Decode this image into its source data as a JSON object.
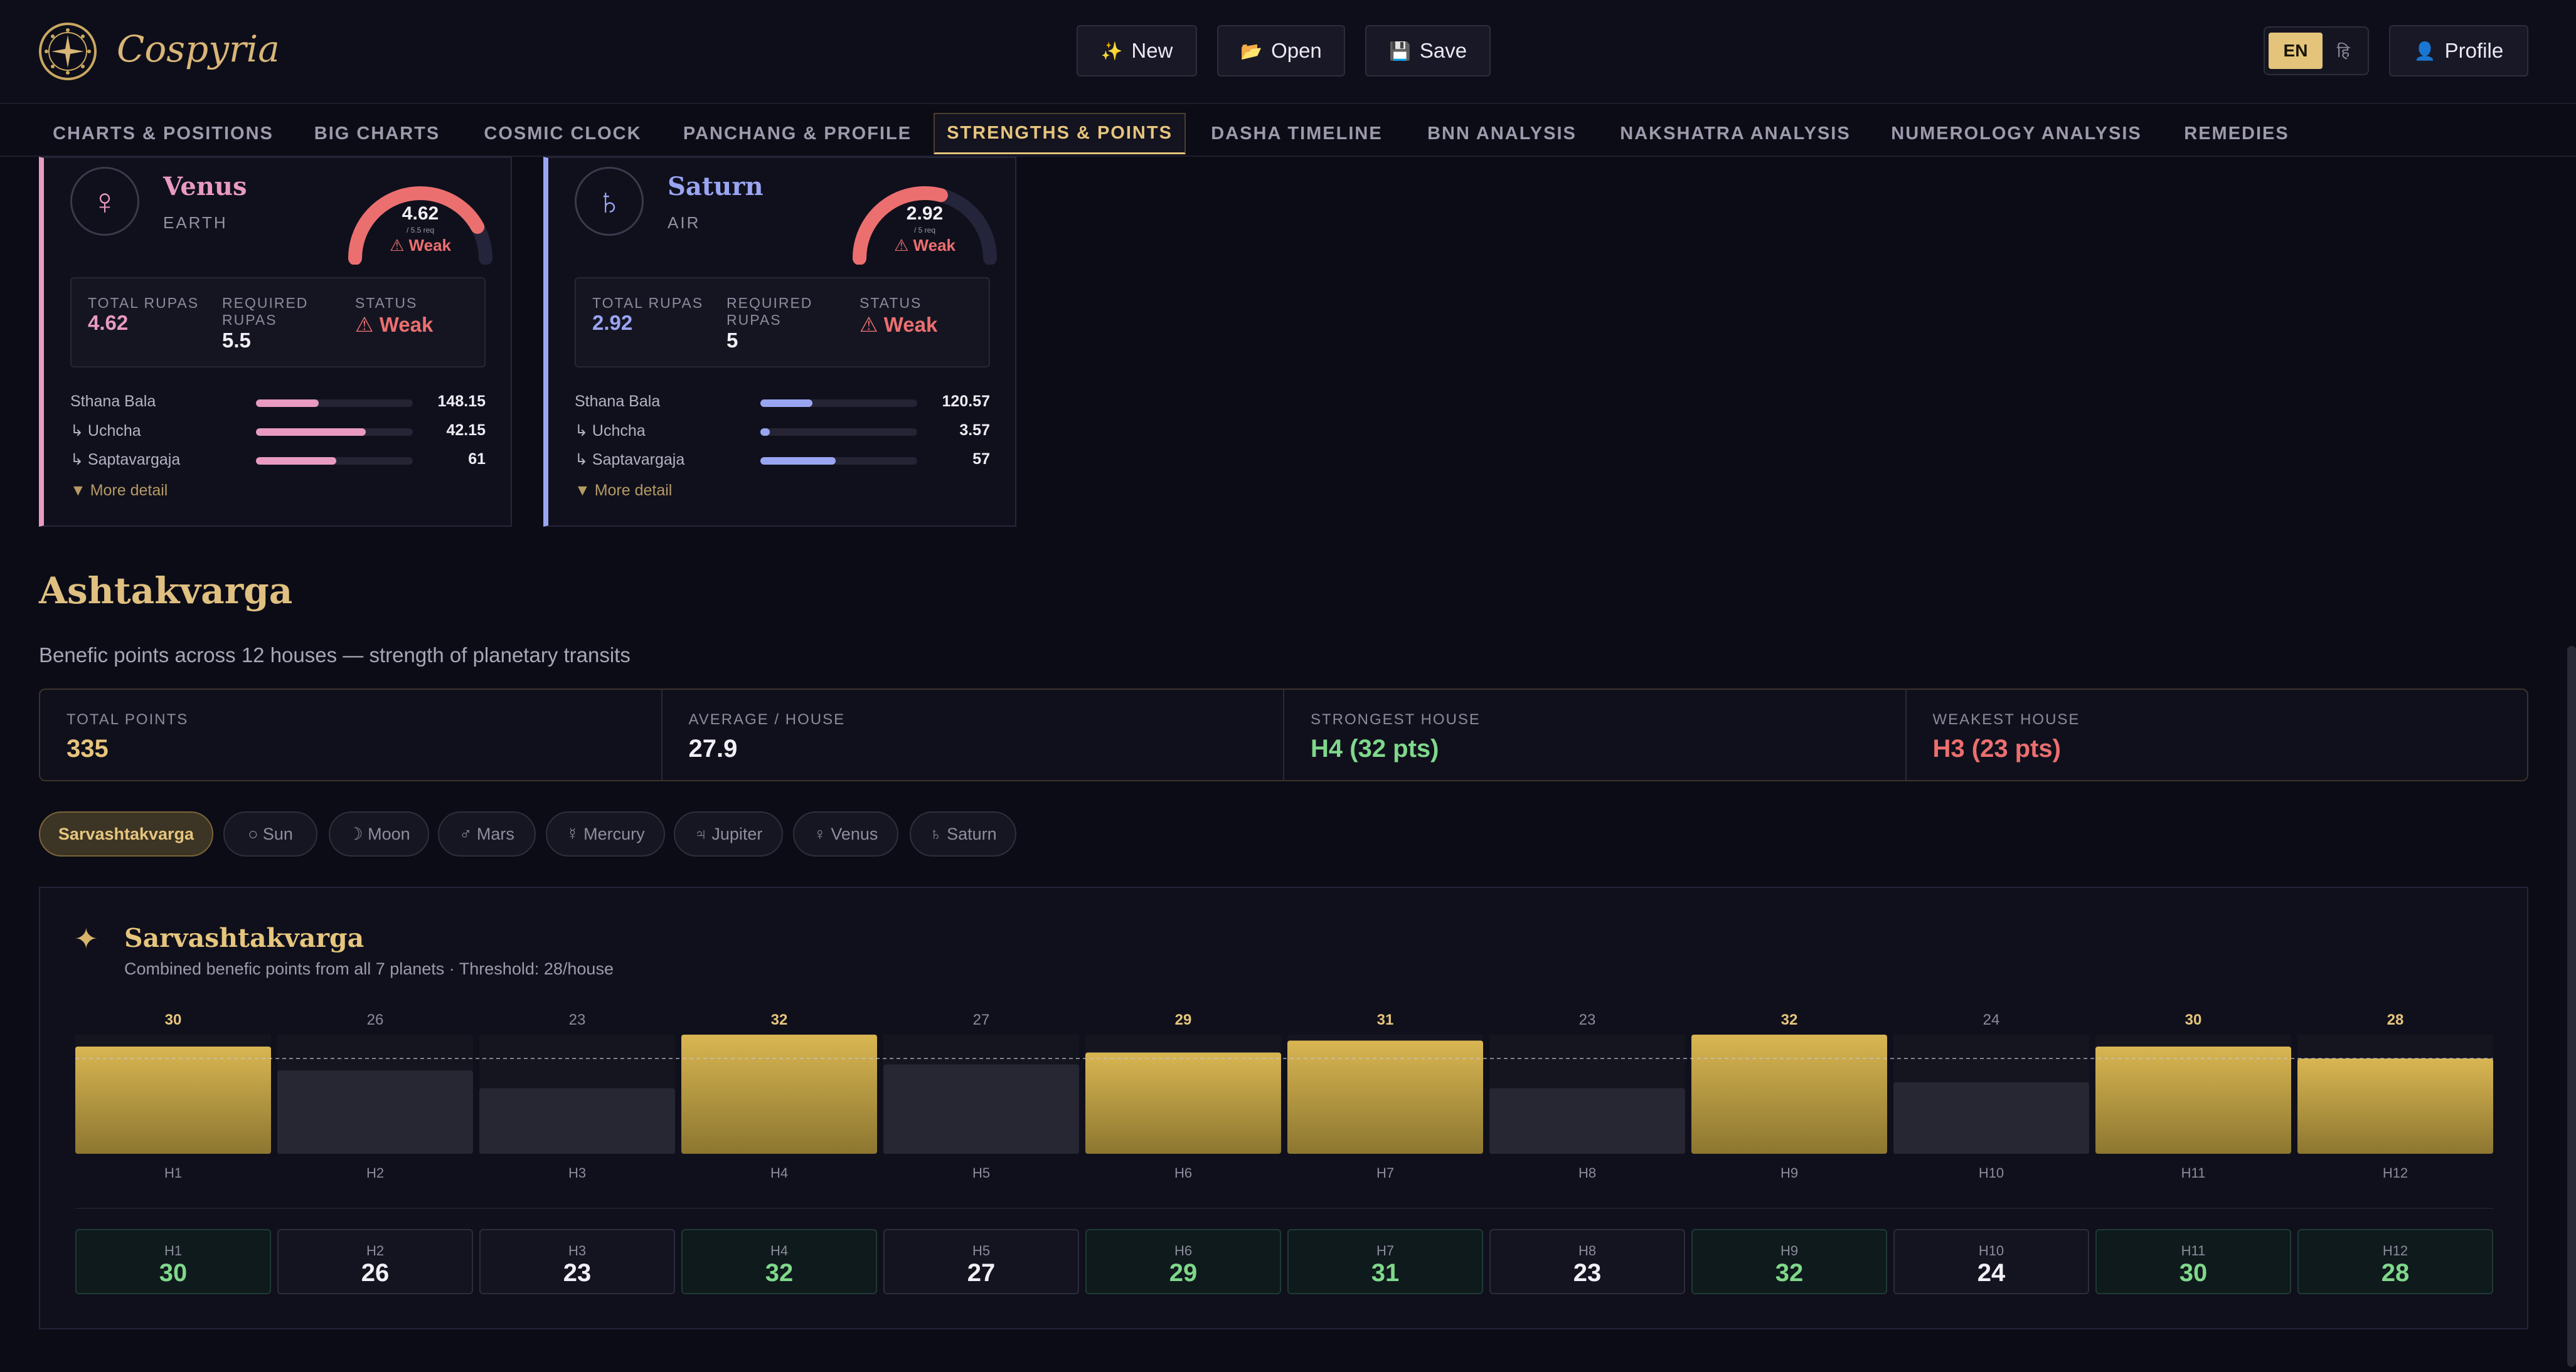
{
  "app": {
    "name": "Cospyria"
  },
  "header": {
    "new_label": "New",
    "new_icon": "✨",
    "open_label": "Open",
    "open_icon": "📂",
    "save_label": "Save",
    "save_icon": "💾",
    "lang_en": "EN",
    "lang_hi": "हि",
    "profile_label": "Profile",
    "profile_icon": "👤"
  },
  "tabs": [
    "CHARTS & POSITIONS",
    "BIG CHARTS",
    "COSMIC CLOCK",
    "PANCHANG & PROFILE",
    "STRENGTHS & POINTS",
    "DASHA TIMELINE",
    "BNN ANALYSIS",
    "NAKSHATRA ANALYSIS",
    "NUMEROLOGY ANALYSIS",
    "REMEDIES"
  ],
  "active_tab": "STRENGTHS & POINTS",
  "planets": [
    {
      "symbol": "♀",
      "name": "Venus",
      "element": "EARTH",
      "score": "4.62",
      "score_sub": "/ 5.5 req",
      "status_short": "⚠ Weak",
      "total_label": "TOTAL RUPAS",
      "total_value": "4.62",
      "req_label_1": "REQUIRED",
      "req_label_2": "RUPAS",
      "req_value": "5.5",
      "status_label": "STATUS",
      "status_value": "⚠ Weak",
      "gauge_fraction": 0.84,
      "color": "#e89ac0",
      "bars": [
        {
          "label": "Sthana Bala",
          "value": "148.15",
          "fraction": 0.4
        },
        {
          "label": "↳ Uchcha",
          "value": "42.15",
          "fraction": 0.7
        },
        {
          "label": "↳ Saptavargaja",
          "value": "61",
          "fraction": 0.51
        }
      ],
      "more": "▼ More detail"
    },
    {
      "symbol": "♄",
      "name": "Saturn",
      "element": "AIR",
      "score": "2.92",
      "score_sub": "/ 5 req",
      "status_short": "⚠ Weak",
      "total_label": "TOTAL RUPAS",
      "total_value": "2.92",
      "req_label_1": "REQUIRED",
      "req_label_2": "RUPAS",
      "req_value": "5",
      "status_label": "STATUS",
      "status_value": "⚠ Weak",
      "gauge_fraction": 0.58,
      "color": "#9aa5f2",
      "bars": [
        {
          "label": "Sthana Bala",
          "value": "120.57",
          "fraction": 0.33
        },
        {
          "label": "↳ Uchcha",
          "value": "3.57",
          "fraction": 0.06
        },
        {
          "label": "↳ Saptavargaja",
          "value": "57",
          "fraction": 0.48
        }
      ],
      "more": "▼ More detail"
    }
  ],
  "ashtak": {
    "title": "Ashtakvarga",
    "subtitle": "Benefic points across 12 houses — strength of planetary transits",
    "stats": [
      {
        "label": "TOTAL POINTS",
        "value": "335",
        "color": "#e6c57d"
      },
      {
        "label": "AVERAGE / HOUSE",
        "value": "27.9",
        "color": "#f2f0f6"
      },
      {
        "label": "STRONGEST HOUSE",
        "value": "H4 (32 pts)",
        "color": "#7fd88b"
      },
      {
        "label": "WEAKEST HOUSE",
        "value": "H3 (23 pts)",
        "color": "#ec6f6f"
      }
    ],
    "filters": [
      "Sarvashtakvarga",
      "○ Sun",
      "☽ Moon",
      "♂ Mars",
      "☿ Mercury",
      "♃ Jupiter",
      "♀ Venus",
      "♄ Saturn"
    ],
    "active_filter": "Sarvashtakvarga"
  },
  "chart_data": {
    "type": "bar",
    "title": "Sarvashtakvarga",
    "subtitle": "Combined benefic points from all 7 planets · Threshold: 28/house",
    "categories": [
      "H1",
      "H2",
      "H3",
      "H4",
      "H5",
      "H6",
      "H7",
      "H8",
      "H9",
      "H10",
      "H11",
      "H12"
    ],
    "values": [
      30,
      26,
      23,
      32,
      27,
      29,
      31,
      23,
      32,
      24,
      30,
      28
    ],
    "threshold": 28,
    "ylim": [
      0,
      32
    ],
    "colors": {
      "above": "#d6b24e",
      "below": "#272733"
    }
  }
}
